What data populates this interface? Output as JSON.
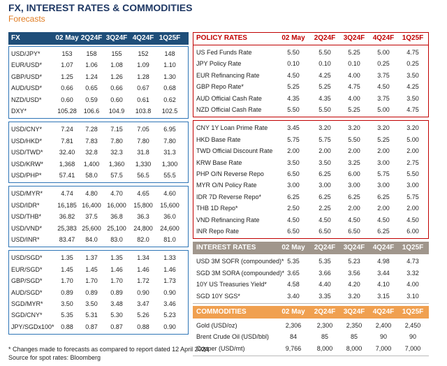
{
  "header": {
    "title": "FX, INTEREST RATES & COMMODITIES",
    "subtitle": "Forecasts"
  },
  "fx": {
    "header": [
      "FX",
      "02 May",
      "2Q24F",
      "3Q24F",
      "4Q24F",
      "1Q25F"
    ],
    "groups": [
      [
        [
          "USD/JPY*",
          "153",
          "158",
          "155",
          "152",
          "148"
        ],
        [
          "EUR/USD*",
          "1.07",
          "1.06",
          "1.08",
          "1.09",
          "1.10"
        ],
        [
          "GBP/USD*",
          "1.25",
          "1.24",
          "1.26",
          "1.28",
          "1.30"
        ],
        [
          "AUD/USD*",
          "0.66",
          "0.65",
          "0.66",
          "0.67",
          "0.68"
        ],
        [
          "NZD/USD*",
          "0.60",
          "0.59",
          "0.60",
          "0.61",
          "0.62"
        ],
        [
          "DXY*",
          "105.28",
          "106.6",
          "104.9",
          "103.8",
          "102.5"
        ]
      ],
      [
        [
          "USD/CNY*",
          "7.24",
          "7.28",
          "7.15",
          "7.05",
          "6.95"
        ],
        [
          "USD/HKD*",
          "7.81",
          "7.83",
          "7.80",
          "7.80",
          "7.80"
        ],
        [
          "USD/TWD*",
          "32.40",
          "32.8",
          "32.3",
          "31.8",
          "31.3"
        ],
        [
          "USD/KRW*",
          "1,368",
          "1,400",
          "1,360",
          "1,330",
          "1,300"
        ],
        [
          "USD/PHP*",
          "57.41",
          "58.0",
          "57.5",
          "56.5",
          "55.5"
        ]
      ],
      [
        [
          "USD/MYR*",
          "4.74",
          "4.80",
          "4.70",
          "4.65",
          "4.60"
        ],
        [
          "USD/IDR*",
          "16,185",
          "16,400",
          "16,000",
          "15,800",
          "15,600"
        ],
        [
          "USD/THB*",
          "36.82",
          "37.5",
          "36.8",
          "36.3",
          "36.0"
        ],
        [
          "USD/VND*",
          "25,383",
          "25,600",
          "25,100",
          "24,800",
          "24,600"
        ],
        [
          "USD/INR*",
          "83.47",
          "84.0",
          "83.0",
          "82.0",
          "81.0"
        ]
      ],
      [
        [
          "USD/SGD*",
          "1.35",
          "1.37",
          "1.35",
          "1.34",
          "1.33"
        ],
        [
          "EUR/SGD*",
          "1.45",
          "1.45",
          "1.46",
          "1.46",
          "1.46"
        ],
        [
          "GBP/SGD*",
          "1.70",
          "1.70",
          "1.70",
          "1.72",
          "1.73"
        ],
        [
          "AUD/SGD*",
          "0.89",
          "0.89",
          "0.89",
          "0.90",
          "0.90"
        ],
        [
          "SGD/MYR*",
          "3.50",
          "3.50",
          "3.48",
          "3.47",
          "3.46"
        ],
        [
          "SGD/CNY*",
          "5.35",
          "5.31",
          "5.30",
          "5.26",
          "5.23"
        ],
        [
          "JPY/SGDx100*",
          "0.88",
          "0.87",
          "0.87",
          "0.88",
          "0.90"
        ]
      ]
    ]
  },
  "policy_rates": {
    "header": [
      "POLICY RATES",
      "02 May",
      "2Q24F",
      "3Q24F",
      "4Q24F",
      "1Q25F"
    ],
    "groups": [
      [
        [
          "US Fed Funds Rate",
          "5.50",
          "5.50",
          "5.25",
          "5.00",
          "4.75"
        ],
        [
          "JPY Policy Rate",
          "0.10",
          "0.10",
          "0.10",
          "0.25",
          "0.25"
        ],
        [
          "EUR Refinancing Rate",
          "4.50",
          "4.25",
          "4.00",
          "3.75",
          "3.50"
        ],
        [
          "GBP Repo Rate*",
          "5.25",
          "5.25",
          "4.75",
          "4.50",
          "4.25"
        ],
        [
          "AUD Official Cash Rate",
          "4.35",
          "4.35",
          "4.00",
          "3.75",
          "3.50"
        ],
        [
          "NZD Official Cash Rate",
          "5.50",
          "5.50",
          "5.25",
          "5.00",
          "4.75"
        ]
      ],
      [
        [
          "CNY 1Y Loan Prime Rate",
          "3.45",
          "3.20",
          "3.20",
          "3.20",
          "3.20"
        ],
        [
          "HKD Base Rate",
          "5.75",
          "5.75",
          "5.50",
          "5.25",
          "5.00"
        ],
        [
          "TWD Official Discount Rate",
          "2.00",
          "2.00",
          "2.00",
          "2.00",
          "2.00"
        ],
        [
          "KRW Base Rate",
          "3.50",
          "3.50",
          "3.25",
          "3.00",
          "2.75"
        ],
        [
          "PHP O/N Reverse Repo",
          "6.50",
          "6.25",
          "6.00",
          "5.75",
          "5.50"
        ],
        [
          "MYR O/N Policy Rate",
          "3.00",
          "3.00",
          "3.00",
          "3.00",
          "3.00"
        ],
        [
          "IDR 7D Reverse Repo*",
          "6.25",
          "6.25",
          "6.25",
          "6.25",
          "5.75"
        ],
        [
          "THB 1D Repo*",
          "2.50",
          "2.25",
          "2.00",
          "2.00",
          "2.00"
        ],
        [
          "VND Refinancing Rate",
          "4.50",
          "4.50",
          "4.50",
          "4.50",
          "4.50"
        ],
        [
          "INR Repo Rate",
          "6.50",
          "6.50",
          "6.50",
          "6.25",
          "6.00"
        ]
      ]
    ]
  },
  "interest_rates": {
    "header": [
      "INTEREST RATES",
      "02 May",
      "2Q24F",
      "3Q24F",
      "4Q24F",
      "1Q25F"
    ],
    "rows": [
      [
        "USD 3M SOFR (compounded)*",
        "5.35",
        "5.35",
        "5.23",
        "4.98",
        "4.73"
      ],
      [
        "SGD 3M SORA (compounded)*",
        "3.65",
        "3.66",
        "3.56",
        "3.44",
        "3.32"
      ],
      [
        "10Y US Treasuries Yield*",
        "4.58",
        "4.40",
        "4.20",
        "4.10",
        "4.00"
      ],
      [
        "SGD 10Y SGS*",
        "3.40",
        "3.35",
        "3.20",
        "3.15",
        "3.10"
      ]
    ]
  },
  "commodities": {
    "header": [
      "COMMODITIES",
      "02 May",
      "2Q24F",
      "3Q24F",
      "4Q24F",
      "1Q25F"
    ],
    "rows": [
      [
        "Gold (USD/oz)",
        "2,306",
        "2,300",
        "2,350",
        "2,400",
        "2,450"
      ],
      [
        "Brent Crude Oil (USD/bbl)",
        "84",
        "85",
        "85",
        "90",
        "90"
      ],
      [
        "Copper (USD/mt)",
        "9,766",
        "8,000",
        "8,000",
        "7,000",
        "7,000"
      ]
    ]
  },
  "footnotes": [
    "* Changes made to forecasts as compared to report dated 12 April 2024",
    "Source for spot rates: Bloomberg"
  ]
}
